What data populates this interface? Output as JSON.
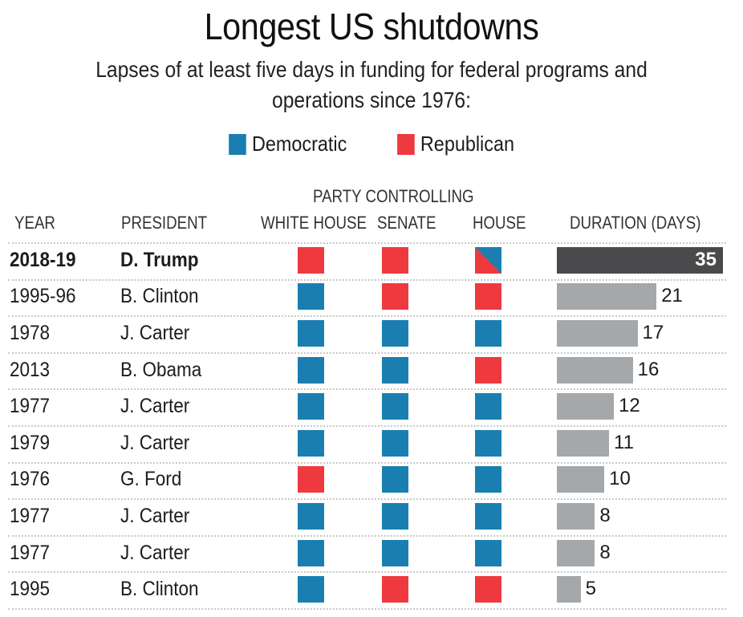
{
  "title": "Longest US shutdowns",
  "subtitle_line1": "Lapses of at least five days in funding for federal programs and",
  "subtitle_line2": "operations since 1976:",
  "colors": {
    "democratic": "#1a7fb0",
    "republican": "#ee3a3f",
    "highlight_bar": "#4a4a4c",
    "bar": "#a4a8aa"
  },
  "legend": [
    {
      "label": "Democratic",
      "party": "D"
    },
    {
      "label": "Republican",
      "party": "R"
    }
  ],
  "headers": {
    "year": "YEAR",
    "president": "PRESIDENT",
    "group": "PARTY CONTROLLING",
    "white_house": "WHITE HOUSE",
    "senate": "SENATE",
    "house": "HOUSE",
    "duration": "DURATION (DAYS)"
  },
  "chart_data": {
    "type": "table",
    "title": "Longest US shutdowns",
    "subtitle": "Lapses of at least five days in funding for federal programs and operations since 1976:",
    "legend": [
      "Democratic",
      "Republican"
    ],
    "columns": [
      "YEAR",
      "PRESIDENT",
      "WHITE HOUSE",
      "SENATE",
      "HOUSE",
      "DURATION (DAYS)"
    ],
    "xlim": [
      0,
      35
    ],
    "rows": [
      {
        "year": "2018-19",
        "president": "D. Trump",
        "white_house": "R",
        "senate": "R",
        "house": "R/D",
        "days": 35,
        "highlight": true
      },
      {
        "year": "1995-96",
        "president": "B. Clinton",
        "white_house": "D",
        "senate": "R",
        "house": "R",
        "days": 21
      },
      {
        "year": "1978",
        "president": "J. Carter",
        "white_house": "D",
        "senate": "D",
        "house": "D",
        "days": 17
      },
      {
        "year": "2013",
        "president": "B. Obama",
        "white_house": "D",
        "senate": "D",
        "house": "R",
        "days": 16
      },
      {
        "year": "1977",
        "president": "J. Carter",
        "white_house": "D",
        "senate": "D",
        "house": "D",
        "days": 12
      },
      {
        "year": "1979",
        "president": "J. Carter",
        "white_house": "D",
        "senate": "D",
        "house": "D",
        "days": 11
      },
      {
        "year": "1976",
        "president": "G. Ford",
        "white_house": "R",
        "senate": "D",
        "house": "D",
        "days": 10
      },
      {
        "year": "1977",
        "president": "J. Carter",
        "white_house": "D",
        "senate": "D",
        "house": "D",
        "days": 8
      },
      {
        "year": "1977",
        "president": "J. Carter",
        "white_house": "D",
        "senate": "D",
        "house": "D",
        "days": 8
      },
      {
        "year": "1995",
        "president": "B. Clinton",
        "white_house": "D",
        "senate": "R",
        "house": "R",
        "days": 5
      }
    ]
  }
}
